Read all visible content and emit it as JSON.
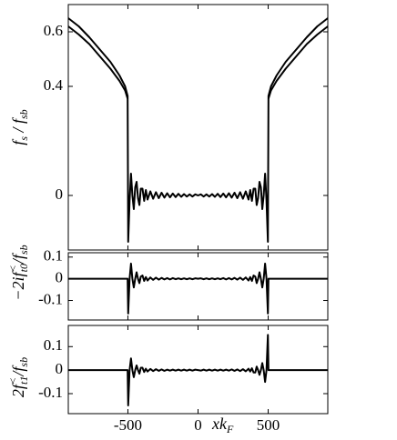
{
  "chart_data": [
    {
      "type": "line",
      "ylabel": [
        "f",
        "s",
        " / f",
        "sb"
      ],
      "xlim": [
        -925,
        925
      ],
      "xticks": [
        -500,
        0,
        500
      ],
      "ylim": [
        -0.2,
        0.7
      ],
      "yticks": [
        0,
        0.4,
        0.6
      ],
      "x": [
        -925,
        -850,
        -775,
        -700,
        -625,
        -560,
        -520,
        -502,
        -498,
        -488,
        -478,
        -468,
        -458,
        -448,
        -438,
        -428,
        -418,
        -408,
        -396,
        -384,
        -372,
        -360,
        -340,
        -320,
        -300,
        -280,
        -260,
        -240,
        -220,
        -200,
        -180,
        -160,
        -140,
        -120,
        -100,
        -80,
        -60,
        -40,
        -20,
        0,
        20,
        40,
        60,
        80,
        100,
        120,
        140,
        160,
        180,
        200,
        220,
        240,
        260,
        280,
        300,
        320,
        340,
        360,
        372,
        384,
        396,
        408,
        418,
        428,
        438,
        448,
        458,
        468,
        478,
        488,
        498,
        502,
        520,
        560,
        625,
        700,
        775,
        850,
        925
      ],
      "series": [
        {
          "color": "#000000",
          "values": [
            0.65,
            0.62,
            0.58,
            0.535,
            0.49,
            0.44,
            0.4,
            0.365,
            -0.17,
            -0.02,
            0.08,
            0,
            -0.05,
            0.03,
            0.05,
            -0.01,
            -0.035,
            0.025,
            0.025,
            -0.02,
            0.02,
            -0.015,
            0.015,
            -0.012,
            0.012,
            -0.01,
            0.01,
            -0.008,
            0.008,
            -0.007,
            0.007,
            -0.006,
            0.006,
            -0.005,
            0.005,
            -0.004,
            0.004,
            -0.004,
            0.004,
            0,
            0.004,
            -0.004,
            0.004,
            -0.004,
            0.005,
            -0.005,
            0.006,
            -0.006,
            0.007,
            -0.007,
            0.008,
            -0.008,
            0.01,
            -0.01,
            0.012,
            -0.012,
            0.015,
            -0.015,
            0.02,
            -0.02,
            0.025,
            0.025,
            -0.035,
            -0.01,
            0.05,
            0.03,
            -0.05,
            0,
            0.08,
            -0.02,
            -0.17,
            0.365,
            0.4,
            0.44,
            0.49,
            0.535,
            0.58,
            0.62,
            0.65
          ]
        },
        {
          "color": "#000000",
          "values": [
            0.62,
            0.59,
            0.555,
            0.51,
            0.465,
            0.42,
            0.385,
            0.355,
            null,
            null,
            null,
            null,
            null,
            null,
            null,
            null,
            null,
            null,
            null,
            null,
            null,
            null,
            null,
            null,
            null,
            null,
            null,
            null,
            null,
            null,
            null,
            null,
            null,
            null,
            null,
            null,
            null,
            null,
            null,
            null,
            null,
            null,
            null,
            null,
            null,
            null,
            null,
            null,
            null,
            null,
            null,
            null,
            null,
            null,
            null,
            null,
            null,
            null,
            null,
            null,
            null,
            null,
            null,
            null,
            null,
            null,
            null,
            null,
            null,
            null,
            null,
            0.355,
            0.385,
            0.42,
            0.465,
            0.51,
            0.555,
            0.59,
            0.62
          ]
        }
      ]
    },
    {
      "type": "line",
      "ylabel": [
        "−2if",
        "<",
        "t0",
        "/f",
        "sb"
      ],
      "xlim": [
        -925,
        925
      ],
      "xticks": [
        -500,
        0,
        500
      ],
      "ylim": [
        -0.19,
        0.12
      ],
      "yticks": [
        -0.1,
        0,
        0.1
      ],
      "x": [
        -925,
        -850,
        -775,
        -700,
        -625,
        -560,
        -520,
        -502,
        -498,
        -488,
        -478,
        -468,
        -458,
        -448,
        -438,
        -428,
        -418,
        -408,
        -396,
        -384,
        -372,
        -360,
        -340,
        -320,
        -300,
        -280,
        -260,
        -240,
        -220,
        -200,
        -180,
        -160,
        -140,
        -120,
        -100,
        -80,
        -60,
        -40,
        -20,
        0,
        20,
        40,
        60,
        80,
        100,
        120,
        140,
        160,
        180,
        200,
        220,
        240,
        260,
        280,
        300,
        320,
        340,
        360,
        372,
        384,
        396,
        408,
        418,
        428,
        438,
        448,
        458,
        468,
        478,
        488,
        498,
        502,
        520,
        560,
        625,
        700,
        775,
        850,
        925
      ],
      "series": [
        {
          "color": "#000000",
          "values": [
            0,
            0,
            0,
            0,
            0,
            0,
            0,
            0,
            -0.16,
            0,
            0.07,
            0,
            -0.04,
            0,
            0.03,
            0,
            -0.02,
            0.01,
            0.015,
            -0.01,
            0.008,
            -0.008,
            0.006,
            -0.005,
            0.005,
            -0.004,
            0.004,
            -0.003,
            0.003,
            -0.003,
            0.003,
            -0.002,
            0.002,
            -0.002,
            0.002,
            -0.002,
            0.002,
            -0.002,
            0.002,
            0,
            0.002,
            -0.002,
            0.002,
            -0.002,
            0.002,
            -0.002,
            0.002,
            -0.002,
            0.003,
            -0.003,
            0.003,
            -0.003,
            0.004,
            -0.004,
            0.005,
            -0.005,
            0.006,
            -0.008,
            0.008,
            -0.01,
            0.015,
            0.01,
            -0.02,
            0,
            0.03,
            0,
            -0.04,
            0,
            0.07,
            0,
            -0.16,
            0,
            0,
            0,
            0,
            0,
            0,
            0,
            0
          ]
        }
      ]
    },
    {
      "type": "line",
      "ylabel": [
        "2f",
        "<",
        "t1",
        "/f",
        "sb"
      ],
      "xlabel": [
        "xk",
        "F"
      ],
      "xlim": [
        -925,
        925
      ],
      "xticks": [
        -500,
        0,
        500
      ],
      "ylim": [
        -0.185,
        0.19
      ],
      "yticks": [
        -0.1,
        0,
        0.1
      ],
      "x": [
        -925,
        -850,
        -775,
        -700,
        -625,
        -560,
        -520,
        -502,
        -498,
        -488,
        -478,
        -468,
        -458,
        -448,
        -438,
        -428,
        -418,
        -408,
        -396,
        -384,
        -372,
        -360,
        -340,
        -320,
        -300,
        -280,
        -260,
        -240,
        -220,
        -200,
        -180,
        -160,
        -140,
        -120,
        -100,
        -80,
        -60,
        -40,
        -20,
        0,
        20,
        40,
        60,
        80,
        100,
        120,
        140,
        160,
        180,
        200,
        220,
        240,
        260,
        280,
        300,
        320,
        340,
        360,
        372,
        384,
        396,
        408,
        418,
        428,
        438,
        448,
        458,
        468,
        478,
        488,
        498,
        502,
        520,
        560,
        625,
        700,
        775,
        850,
        925
      ],
      "series": [
        {
          "color": "#000000",
          "values": [
            0,
            0,
            0,
            0,
            0,
            0,
            0,
            0,
            -0.15,
            0,
            0.05,
            0,
            -0.03,
            0,
            0.02,
            0,
            -0.015,
            0.01,
            0.01,
            -0.008,
            0.006,
            -0.006,
            0.005,
            -0.004,
            0.004,
            -0.003,
            0.003,
            -0.003,
            0.002,
            -0.002,
            0.002,
            -0.002,
            0.002,
            -0.002,
            0.002,
            -0.002,
            0.002,
            -0.002,
            0.002,
            0,
            -0.002,
            0.002,
            -0.002,
            0.002,
            -0.002,
            0.002,
            -0.002,
            0.002,
            -0.002,
            0.002,
            -0.002,
            0.003,
            -0.003,
            0.003,
            -0.004,
            0.004,
            -0.005,
            0.006,
            -0.006,
            0.008,
            -0.01,
            -0.01,
            0.015,
            0,
            -0.02,
            0,
            0.03,
            0,
            -0.05,
            0,
            0.15,
            0,
            0,
            0,
            0,
            0,
            0,
            0,
            0
          ]
        }
      ]
    }
  ]
}
